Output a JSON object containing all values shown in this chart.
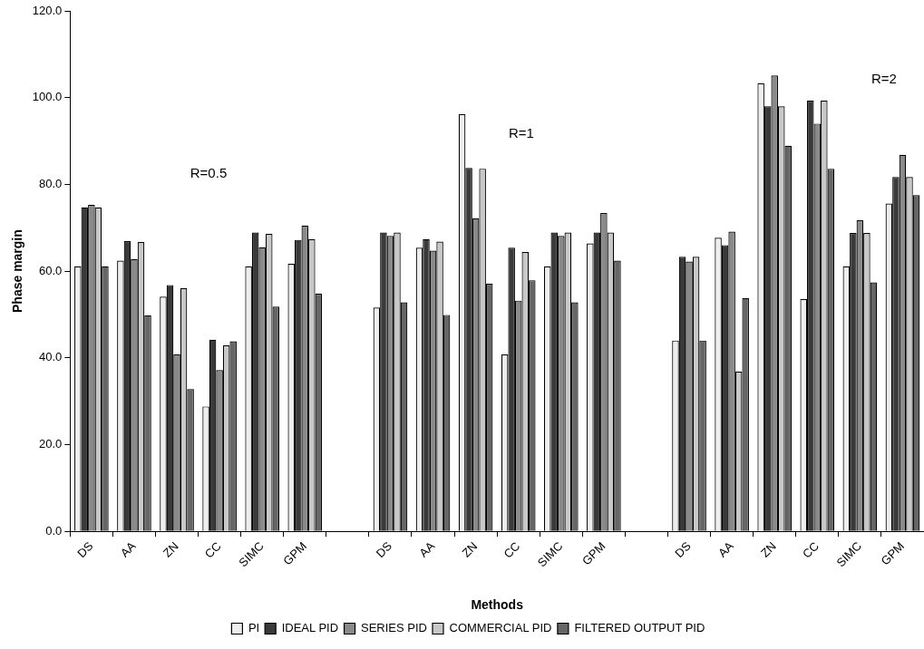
{
  "chart_data": {
    "type": "bar",
    "xlabel": "Methods",
    "ylabel": "Phase margin",
    "categories": [
      "DS",
      "AA",
      "ZN",
      "CC",
      "SIMC",
      "GPM",
      null,
      "DS",
      "AA",
      "ZN",
      "CC",
      "SIMC",
      "GPM",
      null,
      "DS",
      "AA",
      "ZN",
      "CC",
      "SIMC",
      "GPM"
    ],
    "series": [
      {
        "name": "PI",
        "color": "#eeeeee",
        "values": [
          61.1,
          62.4,
          54.1,
          28.8,
          61.1,
          61.7,
          null,
          51.6,
          65.4,
          96.2,
          40.8,
          61.1,
          66.4,
          null,
          44.0,
          67.7,
          103.3,
          53.6,
          61.1,
          75.6
        ]
      },
      {
        "name": "IDEAL PID",
        "color": "#3a3a3a",
        "values": [
          74.7,
          66.9,
          56.8,
          44.2,
          68.9,
          67.2,
          null,
          68.9,
          67.4,
          83.8,
          65.4,
          68.9,
          68.9,
          null,
          63.3,
          66.0,
          98.0,
          99.3,
          68.8,
          81.7
        ]
      },
      {
        "name": "SERIES PID",
        "color": "#8a8a8a",
        "values": [
          75.3,
          62.8,
          40.8,
          37.2,
          65.5,
          70.5,
          null,
          68.1,
          64.7,
          72.2,
          53.2,
          68.1,
          73.4,
          null,
          62.2,
          69.1,
          105.1,
          94.0,
          71.7,
          86.8
        ]
      },
      {
        "name": "COMMERCIAL PID",
        "color": "#c8c8c8",
        "values": [
          74.7,
          66.7,
          56.1,
          42.9,
          68.6,
          67.4,
          null,
          68.9,
          66.8,
          83.6,
          64.4,
          68.9,
          68.9,
          null,
          63.3,
          36.8,
          98.0,
          99.3,
          68.8,
          81.7
        ]
      },
      {
        "name": "FILTERED OUTPUT PID",
        "color": "#666666",
        "values": [
          61.1,
          49.8,
          32.8,
          43.8,
          51.8,
          54.8,
          null,
          52.8,
          49.9,
          57.1,
          57.9,
          52.8,
          62.4,
          null,
          44.0,
          53.8,
          88.9,
          83.6,
          57.4,
          77.5
        ]
      }
    ],
    "ylim": [
      0,
      120
    ],
    "yticks": [
      {
        "value": 0,
        "label": "0.0"
      },
      {
        "value": 20,
        "label": "20.0"
      },
      {
        "value": 40,
        "label": "40.0"
      },
      {
        "value": 60,
        "label": "60.0"
      },
      {
        "value": 80,
        "label": "80.0"
      },
      {
        "value": 100,
        "label": "100.0"
      },
      {
        "value": 120,
        "label": "120.0"
      }
    ],
    "annotations": [
      "R=0.5",
      "R=1",
      "R=2"
    ],
    "grid": false,
    "legend": "bottom"
  }
}
